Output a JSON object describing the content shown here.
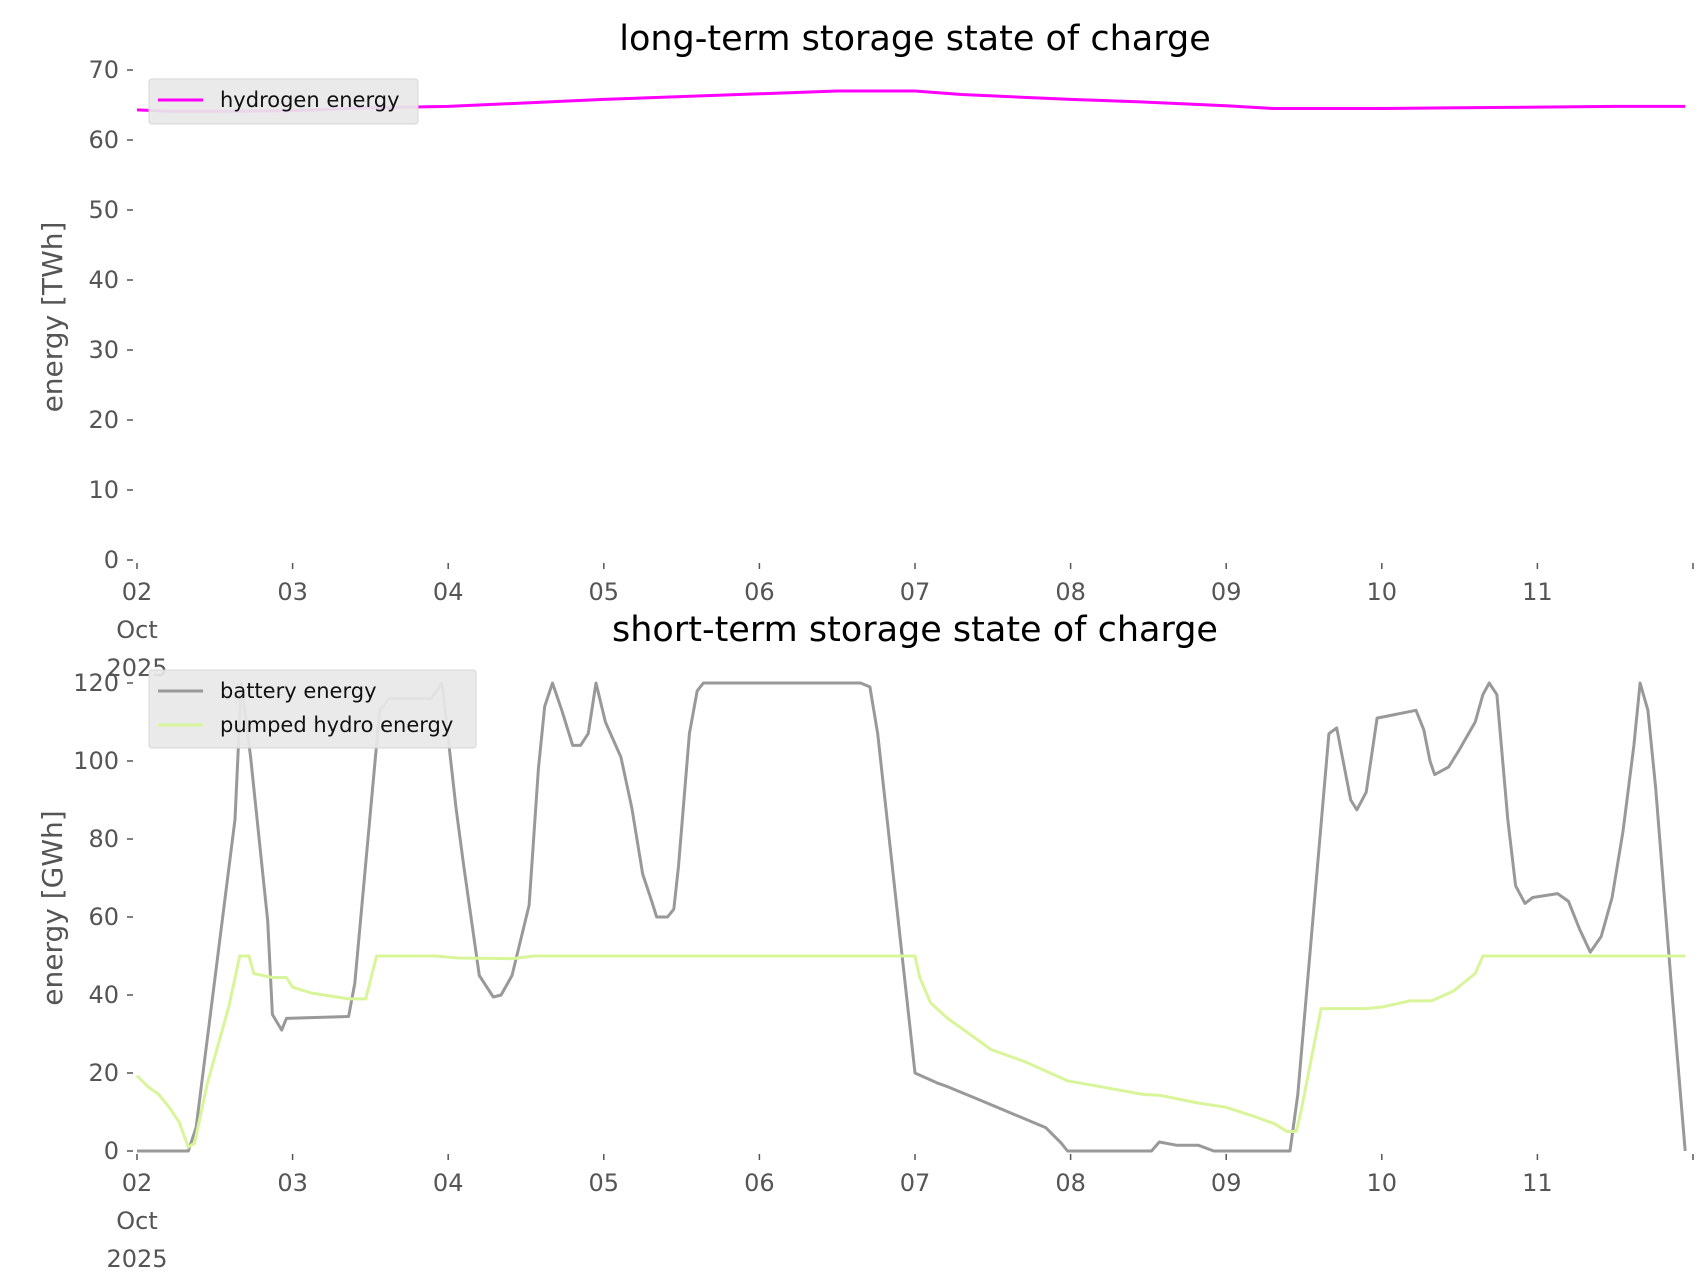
{
  "chart_data": [
    {
      "type": "line",
      "title": "long-term storage state of charge",
      "xlabel": "",
      "ylabel": "energy [TWh]",
      "ylim": [
        0,
        70
      ],
      "yticks": [
        0,
        10,
        20,
        30,
        40,
        50,
        60,
        70
      ],
      "xlim_days_since_oct02": [
        0,
        10
      ],
      "xtick_labels": [
        "02\nOct\n2025",
        "03",
        "04",
        "05",
        "06",
        "07",
        "08",
        "09",
        "10",
        "11"
      ],
      "legend_position": "top-left",
      "grid": false,
      "series": [
        {
          "name": "hydrogen energy",
          "color": "#ff00ff",
          "x": [
            0,
            0.2,
            0.5,
            1,
            1.5,
            2,
            3,
            4,
            4.5,
            5,
            5.3,
            6,
            6.5,
            7,
            7.3,
            8,
            8.5,
            9,
            9.5,
            9.95
          ],
          "y": [
            64.3,
            64.1,
            64.1,
            64.2,
            64.6,
            64.8,
            65.8,
            66.6,
            67.0,
            67.0,
            66.5,
            65.8,
            65.4,
            64.9,
            64.5,
            64.5,
            64.6,
            64.7,
            64.8,
            64.8
          ]
        }
      ]
    },
    {
      "type": "line",
      "title": "short-term storage state of charge",
      "xlabel": "",
      "ylabel": "energy [GWh]",
      "ylim": [
        0,
        120
      ],
      "yticks": [
        0,
        20,
        40,
        60,
        80,
        100,
        120
      ],
      "xlim_days_since_oct02": [
        0,
        10
      ],
      "xtick_labels": [
        "02\nOct\n2025",
        "03",
        "04",
        "05",
        "06",
        "07",
        "08",
        "09",
        "10",
        "11"
      ],
      "legend_position": "top-left",
      "grid": false,
      "series": [
        {
          "name": "battery energy",
          "color": "#999999",
          "x": [
            0,
            0.33,
            0.38,
            0.63,
            0.67,
            0.73,
            0.84,
            0.87,
            0.93,
            0.96,
            1.36,
            1.4,
            1.56,
            1.62,
            1.89,
            1.96,
            2.05,
            2.1,
            2.2,
            2.29,
            2.34,
            2.41,
            2.52,
            2.58,
            2.62,
            2.67,
            2.73,
            2.8,
            2.85,
            2.9,
            2.95,
            3.01,
            3.11,
            3.18,
            3.25,
            3.3,
            3.34,
            3.41,
            3.45,
            3.48,
            3.55,
            3.6,
            3.64,
            4.65,
            4.71,
            4.76,
            5.0,
            5.14,
            5.21,
            5.42,
            5.66,
            5.84,
            5.94,
            5.98,
            6.52,
            6.57,
            6.68,
            6.82,
            6.92,
            7.41,
            7.46,
            7.66,
            7.71,
            7.8,
            7.84,
            7.9,
            7.97,
            8.22,
            8.27,
            8.31,
            8.34,
            8.43,
            8.5,
            8.6,
            8.65,
            8.69,
            8.74,
            8.81,
            8.86,
            8.92,
            8.97,
            9.13,
            9.2,
            9.27,
            9.34,
            9.41,
            9.48,
            9.55,
            9.62,
            9.66,
            9.71,
            9.76,
            9.86,
            9.95
          ],
          "y": [
            0,
            0,
            6,
            85,
            120,
            101,
            59,
            35,
            31,
            34,
            34.5,
            43,
            113,
            116,
            116,
            120,
            88,
            73,
            45,
            39.5,
            40,
            45,
            63,
            98,
            114,
            120,
            113,
            104,
            104,
            107,
            120,
            110,
            101,
            88,
            71,
            65,
            60,
            60,
            62,
            73,
            107,
            118,
            120,
            120,
            119,
            107,
            20,
            17.5,
            16.5,
            13,
            9,
            6,
            2,
            0,
            0,
            2.3,
            1.5,
            1.5,
            0,
            0,
            14.5,
            107,
            108.5,
            90,
            87.5,
            92,
            111,
            113,
            108,
            100,
            96.5,
            98.5,
            103,
            110,
            117,
            120,
            117,
            85,
            68,
            63.5,
            65,
            66,
            64,
            57,
            51,
            55,
            65,
            82,
            104,
            120,
            113,
            93,
            43,
            0
          ]
        },
        {
          "name": "pumped hydro energy",
          "color": "#d9f59a",
          "x": [
            0,
            0.07,
            0.14,
            0.21,
            0.27,
            0.33,
            0.37,
            0.45,
            0.59,
            0.66,
            0.72,
            0.75,
            0.87,
            0.96,
            1.0,
            1.12,
            1.36,
            1.47,
            1.54,
            1.92,
            2.06,
            2.41,
            2.55,
            5.0,
            5.03,
            5.1,
            5.21,
            5.28,
            5.35,
            5.49,
            5.7,
            5.98,
            6.12,
            6.47,
            6.57,
            6.82,
            7.0,
            7.17,
            7.31,
            7.39,
            7.45,
            7.48,
            7.61,
            7.9,
            8.01,
            8.18,
            8.32,
            8.46,
            8.6,
            8.65,
            9.95
          ],
          "y": [
            19.3,
            16.5,
            14.5,
            11,
            7.5,
            1,
            2,
            17,
            37,
            50,
            50,
            45.5,
            44.5,
            44.5,
            42,
            40.5,
            39,
            39,
            50,
            50,
            49.5,
            49.3,
            50,
            50,
            44.5,
            38,
            34,
            32,
            30,
            26,
            23,
            18,
            17,
            14.5,
            14.3,
            12.3,
            11.2,
            9,
            7,
            5,
            5,
            10,
            36.5,
            36.5,
            37,
            38.5,
            38.5,
            41,
            45.5,
            50,
            50
          ]
        }
      ]
    }
  ]
}
